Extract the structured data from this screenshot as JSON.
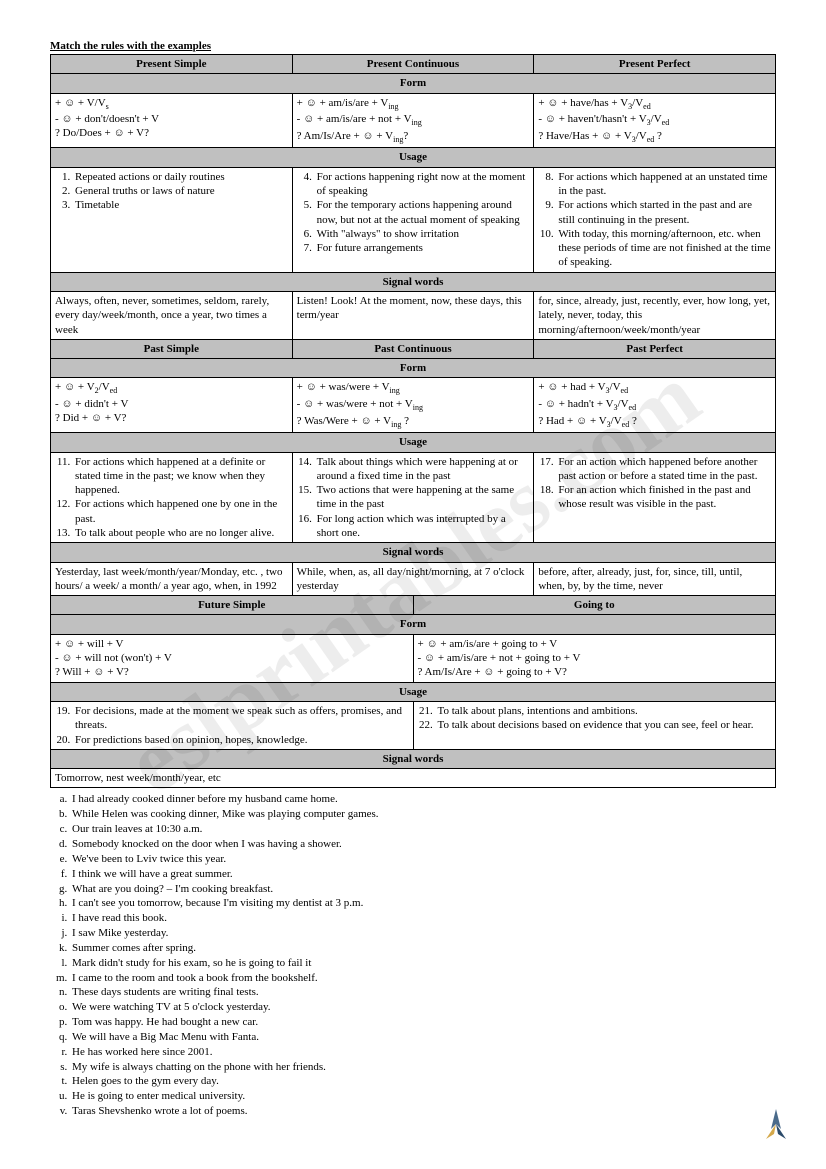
{
  "title": "Match the rules with the examples",
  "headers1": [
    "Present Simple",
    "Present Continuous",
    "Present Perfect"
  ],
  "headers2": [
    "Past Simple",
    "Past Continuous",
    "Past Perfect"
  ],
  "headers3": [
    "Future Simple",
    "Going to"
  ],
  "sections": {
    "form": "Form",
    "usage": "Usage",
    "signal": "Signal words"
  },
  "forms1": {
    "ps": "+ ☺ + V/Vs\n- ☺ + don't/doesn't + V\n? Do/Does + ☺ + V?",
    "pc": "+ ☺ + am/is/are + Ving\n- ☺ + am/is/are + not + Ving\n? Am/Is/Are + ☺ + Ving?",
    "pp": "+ ☺ + have/has + V3/Ved\n- ☺ + haven't/hasn't + V3/Ved\n? Have/Has + ☺ + V3/Ved ?"
  },
  "usage1": {
    "ps": [
      "Repeated actions or daily routines",
      "General truths or laws of nature",
      "Timetable"
    ],
    "pc": [
      "For actions happening right now at the moment of speaking",
      "For the temporary actions happening around now, but not at the actual moment of speaking",
      "With \"always\" to show irritation",
      "For future arrangements"
    ],
    "pp": [
      "For actions which happened at an unstated time in the past.",
      "For actions which started in the past and are still continuing in the present.",
      "With today, this morning/afternoon, etc. when these periods of time are not finished at the time of speaking."
    ]
  },
  "signals1": {
    "ps": "Always, often, never, sometimes, seldom, rarely, every day/week/month, once a year, two times a week",
    "pc": "Listen! Look! At the moment, now, these days, this term/year",
    "pp": "for, since, already, just, recently, ever, how long, yet, lately, never, today, this morning/afternoon/week/month/year"
  },
  "forms2": {
    "ps": "+ ☺ + V2/Ved\n- ☺ + didn't + V\n? Did + ☺ + V?",
    "pc": "+ ☺ + was/were + Ving\n- ☺ + was/were + not + Ving\n? Was/Were + ☺ + Ving ?",
    "pp": "+ ☺ + had + V3/Ved\n- ☺ + hadn't + V3/Ved\n? Had + ☺ + V3/Ved ?"
  },
  "usage2": {
    "ps": [
      "For actions which happened at a definite or stated time in the past; we know when they happened.",
      "For actions which happened one by one in the past.",
      "To talk about people who are no longer alive."
    ],
    "pc": [
      "Talk about things which were happening at or around a fixed time in the past",
      "Two actions that were happening at the same time in the past",
      "For long action which was interrupted by a short one."
    ],
    "pp": [
      "For an action which happened before another past action or before a stated time in the past.",
      "For an action which finished in the past and whose result was visible in the past."
    ]
  },
  "signals2": {
    "ps": "Yesterday, last week/month/year/Monday, etc. , two hours/ a week/ a month/ a year ago, when, in 1992",
    "pc": "While, when, as, all day/night/morning, at 7 o'clock yesterday",
    "pp": "before, after, already, just, for, since, till, until, when, by, by the time, never"
  },
  "forms3": {
    "fs": "+ ☺ + will + V\n- ☺ + will not (won't) + V\n? Will + ☺ + V?",
    "gt": "+ ☺ + am/is/are + going to + V\n- ☺ + am/is/are + not + going to + V\n? Am/Is/Are + ☺ + going to + V?"
  },
  "usage3": {
    "fs": [
      "For decisions, made at the moment we speak such as offers, promises, and threats.",
      "For predictions based on opinion, hopes, knowledge."
    ],
    "gt": [
      "To talk about plans, intentions and ambitions.",
      "To talk about decisions based on evidence that you can see, feel or hear."
    ]
  },
  "signals3": "Tomorrow, nest week/month/year, etc",
  "examples": [
    "I had already cooked dinner before my husband came home.",
    "While Helen was cooking dinner, Mike was playing computer games.",
    "Our train leaves at 10:30 a.m.",
    "Somebody knocked on the door when I was having a shower.",
    "We've been to Lviv twice this year.",
    "I think we will have a great summer.",
    "What are you doing? – I'm cooking breakfast.",
    "I can't see you tomorrow, because I'm visiting my dentist at 3 p.m.",
    "I have read this book.",
    "I saw Mike yesterday.",
    "Summer comes after spring.",
    "Mark didn't study for his exam, so he is going to fail it",
    "I came to the room and took a book from the bookshelf.",
    "These days students are writing final tests.",
    "We were watching TV at 5 o'clock yesterday.",
    "Tom was happy. He had bought a new car.",
    "We will have a Big Mac Menu with Fanta.",
    "He has worked here since 2001.",
    "My wife is always chatting on the phone with her friends.",
    "Helen goes to the gym every day.",
    "He is going to enter medical university.",
    "Taras Shevshenko wrote a lot of poems."
  ],
  "watermark": "eslprintables.com"
}
